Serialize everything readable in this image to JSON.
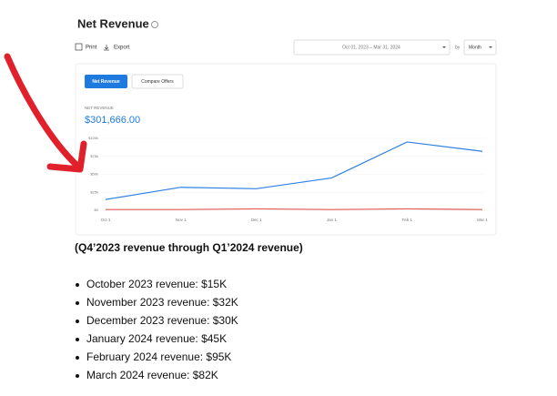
{
  "header": {
    "title": "Net Revenue"
  },
  "toolbar": {
    "print": "Print",
    "export": "Export",
    "date_range": "Oct 01, 2023 – Mar 31, 2024",
    "by": "by",
    "interval": "Month"
  },
  "tabs": [
    "Net Revenue",
    "Compare Offers"
  ],
  "summary": {
    "label": "NET REVENUE",
    "value": "$301,666.00"
  },
  "chart_data": {
    "type": "line",
    "categories": [
      "Oct 1",
      "Nov 1",
      "Dec 1",
      "Jan 1",
      "Feb 1",
      "Mar 1"
    ],
    "series": [
      {
        "color": "#2f80e4",
        "values": [
          15,
          32,
          30,
          45,
          95,
          82
        ]
      },
      {
        "color": "#e05a5a",
        "values": [
          1,
          1,
          2,
          1,
          2,
          1
        ]
      }
    ],
    "ylim": [
      0,
      100
    ],
    "yticks": [
      {
        "value": 0,
        "label": "$0"
      },
      {
        "value": 25,
        "label": "$25k"
      },
      {
        "value": 50,
        "label": "$50k"
      },
      {
        "value": 75,
        "label": "$75k"
      },
      {
        "value": 100,
        "label": "$100k"
      }
    ],
    "grid": true
  },
  "document": {
    "heading": "(Q4’2023 revenue through Q1’2024 revenue)",
    "items": [
      "October 2023 revenue: $15K",
      "November 2023 revenue: $32K",
      "December 2023 revenue: $30K",
      "January 2024 revenue: $45K",
      "February 2024 revenue: $95K",
      "March 2024 revenue: $82K"
    ]
  }
}
